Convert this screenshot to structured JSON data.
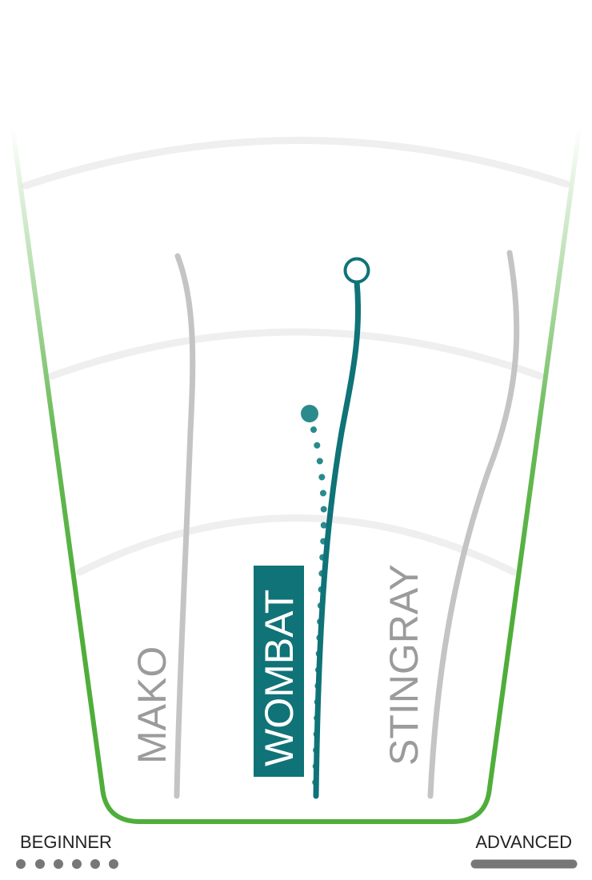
{
  "diagram": {
    "lanes": [
      {
        "name": "MAKO",
        "highlighted": false
      },
      {
        "name": "WOMBAT",
        "highlighted": true
      },
      {
        "name": "STINGRAY",
        "highlighted": false
      }
    ],
    "scale": {
      "left_label": "BEGINNER",
      "right_label": "ADVANCED"
    },
    "colors": {
      "accent": "#0f7377",
      "accent_light": "#2a8a8c",
      "lane_grey": "#c4c4c4",
      "label_grey": "#9b9b9b",
      "arc_grey": "#efefef",
      "outline_green": "#4fae3a",
      "scale_grey": "#777777",
      "text_dark": "#222222"
    }
  }
}
